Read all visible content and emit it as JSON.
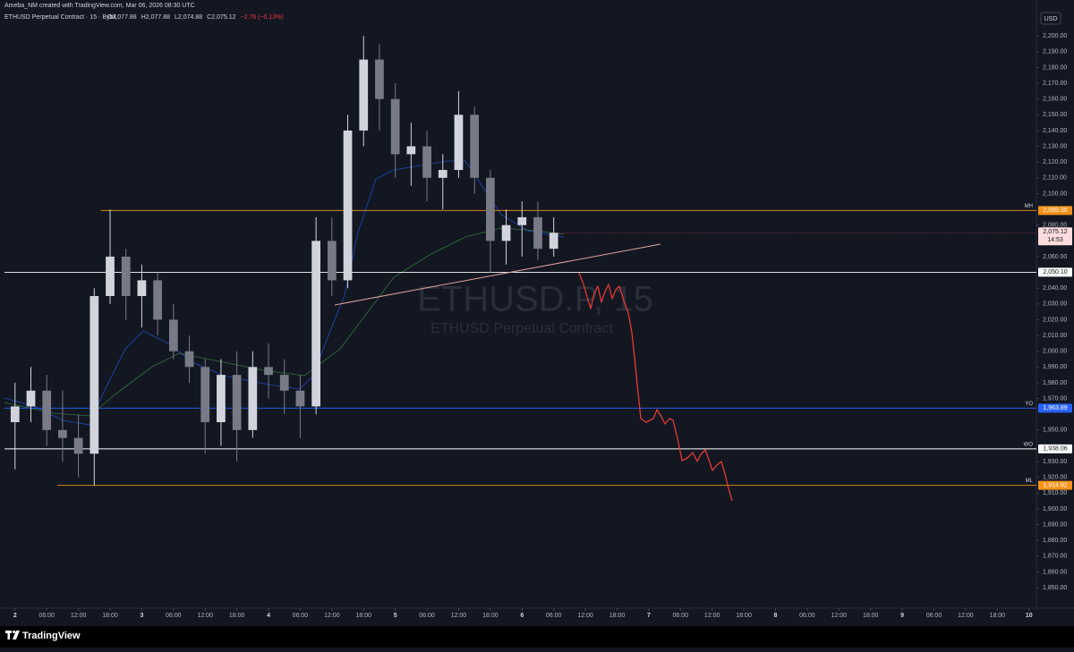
{
  "header": {
    "credit": "Ameba_NM created with TradingView.com, Mar 06, 2026 08:30 UTC",
    "symbol": "ETHUSD Perpetual Contract · 15 · Bybit",
    "ohlc": [
      "O2,077.88",
      "H2,077.88",
      "L2,074.88",
      "C2,075.12",
      "−2.76 (−0.13%)"
    ]
  },
  "chart_data": {
    "type": "candlestick",
    "watermark": "ETHUSD.P, 15",
    "watermark_subtitle": "ETHUSD Perpetual Contract",
    "currency": "USD",
    "up_color": "#d1d4dc",
    "down_color": "#787b86",
    "x": [
      0,
      3,
      6,
      9,
      12,
      15,
      18,
      21,
      24,
      27,
      30,
      33,
      36,
      39,
      42,
      45,
      48,
      51,
      54,
      57,
      60,
      63,
      66,
      69,
      72,
      75,
      78,
      81,
      84,
      87,
      90,
      93,
      96,
      99,
      102
    ],
    "open": [
      1955,
      1965,
      1975,
      1950,
      1945,
      1935,
      2035,
      2060,
      2035,
      2045,
      2020,
      2000,
      1990,
      1955,
      1985,
      1950,
      1990,
      1985,
      1975,
      1965,
      2070,
      2045,
      2140,
      2185,
      2160,
      2125,
      2130,
      2110,
      2115,
      2150,
      2110,
      2070,
      2080,
      2085,
      2065
    ],
    "high": [
      1980,
      1990,
      1985,
      1975,
      1960,
      2040,
      2090,
      2065,
      2055,
      2050,
      2030,
      2010,
      1995,
      1995,
      2000,
      2000,
      2005,
      1995,
      1985,
      2085,
      2085,
      2150,
      2200,
      2195,
      2170,
      2145,
      2140,
      2125,
      2165,
      2155,
      2115,
      2090,
      2095,
      2095,
      2085
    ],
    "low": [
      1925,
      1955,
      1940,
      1930,
      1920,
      1915,
      2030,
      2020,
      2015,
      2010,
      1995,
      1980,
      1935,
      1940,
      1930,
      1945,
      1970,
      1960,
      1945,
      1960,
      2035,
      2040,
      2130,
      2140,
      2110,
      2105,
      2095,
      2090,
      2110,
      2100,
      2050,
      2055,
      2060,
      2058,
      2060
    ],
    "close": [
      1965,
      1975,
      1950,
      1945,
      1935,
      2035,
      2060,
      2035,
      2045,
      2020,
      2000,
      1990,
      1955,
      1985,
      1950,
      1990,
      1985,
      1975,
      1965,
      2070,
      2045,
      2140,
      2185,
      2160,
      2125,
      2130,
      2110,
      2115,
      2150,
      2110,
      2070,
      2080,
      2085,
      2065,
      2075.12
    ],
    "last_price": {
      "value": 2075.12,
      "label": "2,075.12",
      "countdown": "14:53"
    },
    "levels": [
      {
        "name": "MH",
        "value": 2089.3,
        "label": "2,089.30",
        "color": "#f7931a",
        "start": 16.25
      },
      {
        "value": 2050.1,
        "label": "2,050.10",
        "color": "#ffffff",
        "start": -2
      },
      {
        "name": "YO",
        "value": 1963.89,
        "label": "1,963.89",
        "color": "#2962ff",
        "start": -2
      },
      {
        "name": "WO",
        "value": 1938.06,
        "label": "1,938.06",
        "color": "#ffffff",
        "start": -2
      },
      {
        "name": "ML",
        "value": 1914.92,
        "label": "1,914.92",
        "color": "#f7931a",
        "start": 8
      }
    ],
    "xlim": [
      -2,
      193.4
    ],
    "xticks": [
      {
        "value": 0,
        "label": "2"
      },
      {
        "value": 6,
        "label": "06:00"
      },
      {
        "value": 12,
        "label": "12:00"
      },
      {
        "value": 18,
        "label": "18:00"
      },
      {
        "value": 24,
        "label": "3"
      },
      {
        "value": 30,
        "label": "06:00"
      },
      {
        "value": 36,
        "label": "12:00"
      },
      {
        "value": 42,
        "label": "18:00"
      },
      {
        "value": 48,
        "label": "4"
      },
      {
        "value": 54,
        "label": "06:00"
      },
      {
        "value": 60,
        "label": "12:00"
      },
      {
        "value": 66,
        "label": "18:00"
      },
      {
        "value": 72,
        "label": "5"
      },
      {
        "value": 78,
        "label": "06:00"
      },
      {
        "value": 84,
        "label": "12:00"
      },
      {
        "value": 90,
        "label": "18:00"
      },
      {
        "value": 96,
        "label": "6"
      },
      {
        "value": 102,
        "label": "06:00"
      },
      {
        "value": 108,
        "label": "12:00"
      },
      {
        "value": 114,
        "label": "18:00"
      },
      {
        "value": 120,
        "label": "7"
      },
      {
        "value": 126,
        "label": "06:00"
      },
      {
        "value": 132,
        "label": "12:00"
      },
      {
        "value": 138,
        "label": "18:00"
      },
      {
        "value": 144,
        "label": "8"
      },
      {
        "value": 150,
        "label": "06:00"
      },
      {
        "value": 156,
        "label": "12:00"
      },
      {
        "value": 162,
        "label": "18:00"
      },
      {
        "value": 168,
        "label": "9"
      },
      {
        "value": 174,
        "label": "06:00"
      },
      {
        "value": 180,
        "label": "12:00"
      },
      {
        "value": 186,
        "label": "18:00"
      },
      {
        "value": 192,
        "label": "10"
      }
    ],
    "ylim": [
      1837,
      2216
    ],
    "yticks": [
      {
        "value": 2200,
        "label": "2,200.00"
      },
      {
        "value": 2190,
        "label": "2,190.00"
      },
      {
        "value": 2180,
        "label": "2,180.00"
      },
      {
        "value": 2170,
        "label": "2,170.00"
      },
      {
        "value": 2160,
        "label": "2,160.00"
      },
      {
        "value": 2150,
        "label": "2,150.00"
      },
      {
        "value": 2140,
        "label": "2,140.00"
      },
      {
        "value": 2130,
        "label": "2,130.00"
      },
      {
        "value": 2120,
        "label": "2,120.00"
      },
      {
        "value": 2110,
        "label": "2,110.00"
      },
      {
        "value": 2100,
        "label": "2,100.00"
      },
      {
        "value": 2080,
        "label": "2,080.00"
      },
      {
        "value": 2060,
        "label": "2,060.00"
      },
      {
        "value": 2040,
        "label": "2,040.00"
      },
      {
        "value": 2030,
        "label": "2,030.00"
      },
      {
        "value": 2020,
        "label": "2,020.00"
      },
      {
        "value": 2010,
        "label": "2,010.00"
      },
      {
        "value": 2000,
        "label": "2,000.00"
      },
      {
        "value": 1990,
        "label": "1,990.00"
      },
      {
        "value": 1980,
        "label": "1,980.00"
      },
      {
        "value": 1970,
        "label": "1,970.00"
      },
      {
        "value": 1950,
        "label": "1,950.00"
      },
      {
        "value": 1930,
        "label": "1,930.00"
      },
      {
        "value": 1920,
        "label": "1,920.00"
      },
      {
        "value": 1910,
        "label": "1,910.00"
      },
      {
        "value": 1900,
        "label": "1,900.00"
      },
      {
        "value": 1890,
        "label": "1,890.00"
      },
      {
        "value": 1880,
        "label": "1,880.00"
      },
      {
        "value": 1870,
        "label": "1,870.00"
      },
      {
        "value": 1860,
        "label": "1,860.00"
      },
      {
        "value": 1850,
        "label": "1,850.00"
      }
    ]
  },
  "footer": {
    "brand": "TradingView"
  }
}
